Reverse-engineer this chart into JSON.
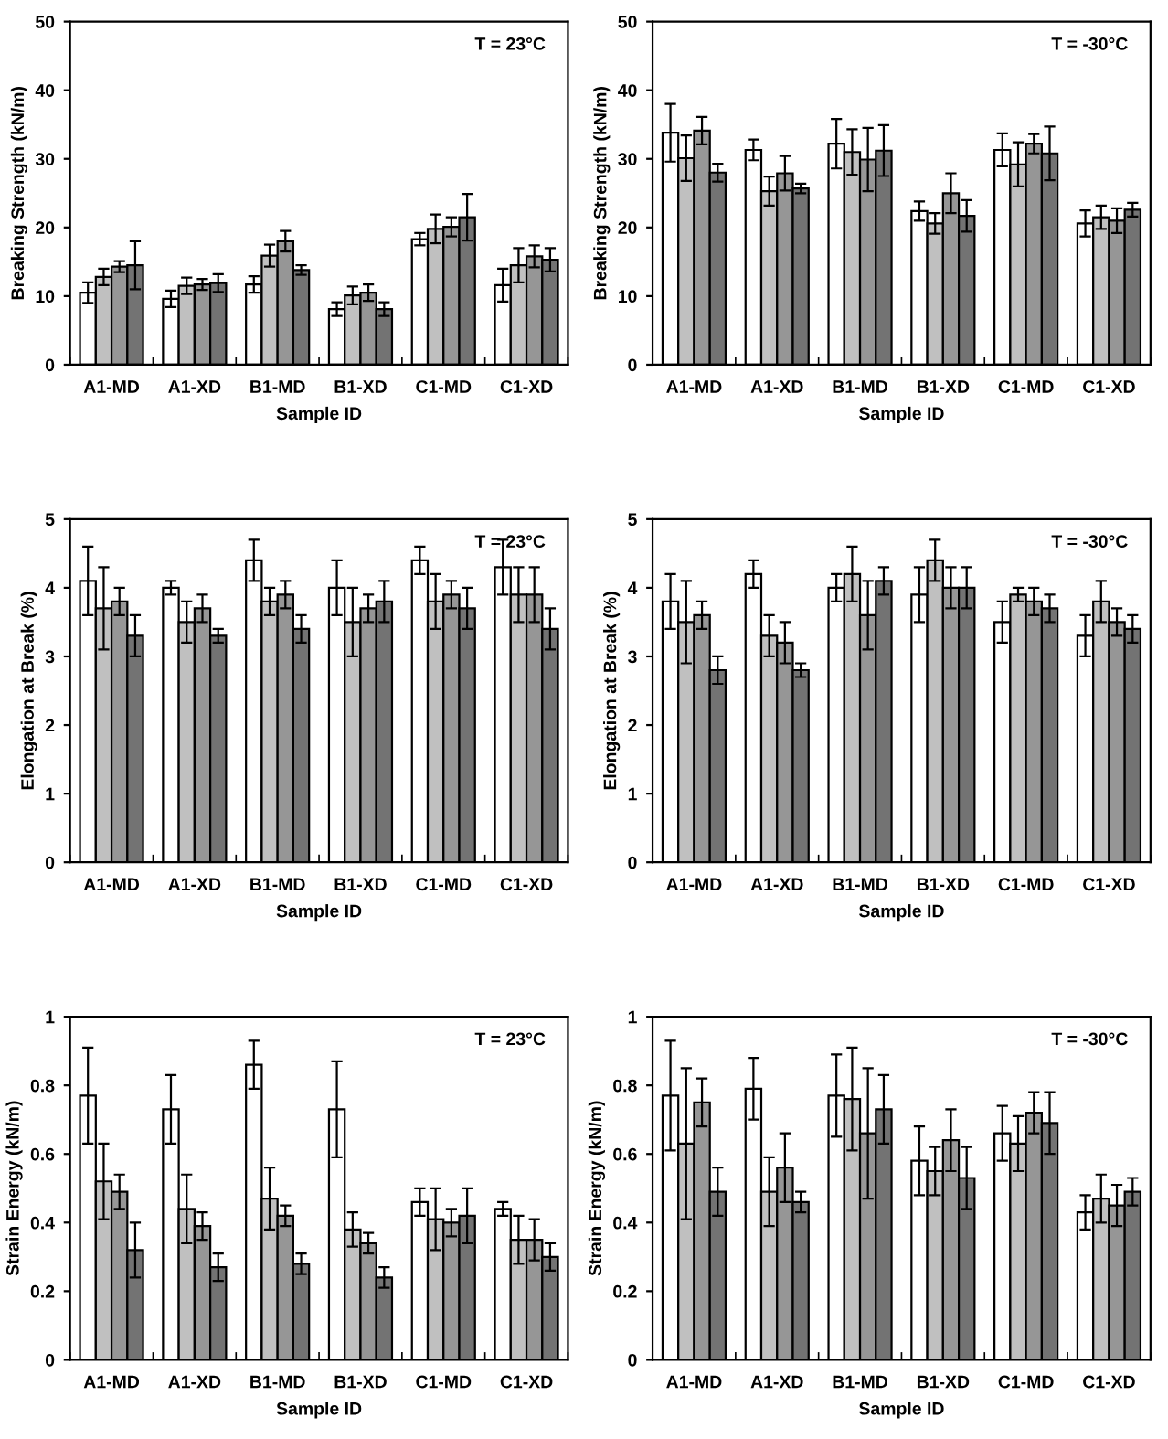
{
  "chart_data": [
    {
      "type": "bar",
      "categories": [
        "A1-MD",
        "A1-XD",
        "B1-MD",
        "B1-XD",
        "C1-MD",
        "C1-XD"
      ],
      "xlabel": "Sample ID",
      "ylabel": "Breaking Strength (kN/m)",
      "annotations": [
        "T = 23°C"
      ],
      "ylim": [
        0,
        50
      ],
      "yticks": [
        0,
        10,
        20,
        30,
        40,
        50
      ],
      "grid": false,
      "legend": false,
      "series": [
        {
          "color": "#ffffff",
          "values": [
            10.5,
            9.6,
            11.7,
            8.1,
            18.3,
            11.6
          ],
          "errors": [
            1.5,
            1.2,
            1.2,
            1.0,
            0.9,
            2.4
          ]
        },
        {
          "color": "#c0c0c0",
          "values": [
            12.8,
            11.5,
            15.9,
            10.1,
            19.8,
            14.5
          ],
          "errors": [
            1.2,
            1.2,
            1.6,
            1.3,
            2.1,
            2.5
          ]
        },
        {
          "color": "#969696",
          "values": [
            14.3,
            11.7,
            18.0,
            10.5,
            20.1,
            15.8
          ],
          "errors": [
            0.8,
            0.8,
            1.5,
            1.2,
            1.4,
            1.6
          ]
        },
        {
          "color": "#737373",
          "values": [
            14.5,
            11.9,
            13.8,
            8.1,
            21.5,
            15.3
          ],
          "errors": [
            3.5,
            1.3,
            0.7,
            1.0,
            3.4,
            1.7
          ]
        }
      ]
    },
    {
      "type": "bar",
      "categories": [
        "A1-MD",
        "A1-XD",
        "B1-MD",
        "B1-XD",
        "C1-MD",
        "C1-XD"
      ],
      "xlabel": "Sample ID",
      "ylabel": "Breaking Strength (kN/m)",
      "annotations": [
        "T = -30°C"
      ],
      "ylim": [
        0,
        50
      ],
      "yticks": [
        0,
        10,
        20,
        30,
        40,
        50
      ],
      "grid": false,
      "legend": false,
      "series": [
        {
          "color": "#ffffff",
          "values": [
            33.8,
            31.3,
            32.2,
            22.4,
            31.3,
            20.6
          ],
          "errors": [
            4.2,
            1.5,
            3.6,
            1.4,
            2.4,
            1.9
          ]
        },
        {
          "color": "#c0c0c0",
          "values": [
            30.1,
            25.3,
            31.0,
            20.6,
            29.2,
            21.5
          ],
          "errors": [
            3.3,
            2.1,
            3.3,
            1.5,
            3.2,
            1.7
          ]
        },
        {
          "color": "#969696",
          "values": [
            34.1,
            27.9,
            29.9,
            25.0,
            32.2,
            21.0
          ],
          "errors": [
            2.0,
            2.5,
            4.6,
            2.9,
            1.4,
            1.8
          ]
        },
        {
          "color": "#737373",
          "values": [
            28.0,
            25.7,
            31.2,
            21.7,
            30.8,
            22.6
          ],
          "errors": [
            1.3,
            0.7,
            3.7,
            2.3,
            3.9,
            1.0
          ]
        }
      ]
    },
    {
      "type": "bar",
      "categories": [
        "A1-MD",
        "A1-XD",
        "B1-MD",
        "B1-XD",
        "C1-MD",
        "C1-XD"
      ],
      "xlabel": "Sample ID",
      "ylabel": "Elongation at Break (%)",
      "annotations": [
        "T = 23°C"
      ],
      "ylim": [
        0,
        5
      ],
      "yticks": [
        0,
        1,
        2,
        3,
        4,
        5
      ],
      "grid": false,
      "legend": false,
      "series": [
        {
          "color": "#ffffff",
          "values": [
            4.1,
            4.0,
            4.4,
            4.0,
            4.4,
            4.3
          ],
          "errors": [
            0.5,
            0.1,
            0.3,
            0.4,
            0.2,
            0.4
          ]
        },
        {
          "color": "#c0c0c0",
          "values": [
            3.7,
            3.5,
            3.8,
            3.5,
            3.8,
            3.9
          ],
          "errors": [
            0.6,
            0.3,
            0.2,
            0.5,
            0.4,
            0.4
          ]
        },
        {
          "color": "#969696",
          "values": [
            3.8,
            3.7,
            3.9,
            3.7,
            3.9,
            3.9
          ],
          "errors": [
            0.2,
            0.2,
            0.2,
            0.2,
            0.2,
            0.4
          ]
        },
        {
          "color": "#737373",
          "values": [
            3.3,
            3.3,
            3.4,
            3.8,
            3.7,
            3.4
          ],
          "errors": [
            0.3,
            0.1,
            0.2,
            0.3,
            0.3,
            0.3
          ]
        }
      ]
    },
    {
      "type": "bar",
      "categories": [
        "A1-MD",
        "A1-XD",
        "B1-MD",
        "B1-XD",
        "C1-MD",
        "C1-XD"
      ],
      "xlabel": "Sample ID",
      "ylabel": "Elongation at Break (%)",
      "annotations": [
        "T = -30°C"
      ],
      "ylim": [
        0,
        5
      ],
      "yticks": [
        0,
        1,
        2,
        3,
        4,
        5
      ],
      "grid": false,
      "legend": false,
      "series": [
        {
          "color": "#ffffff",
          "values": [
            3.8,
            4.2,
            4.0,
            3.9,
            3.5,
            3.3
          ],
          "errors": [
            0.4,
            0.2,
            0.2,
            0.4,
            0.3,
            0.3
          ]
        },
        {
          "color": "#c0c0c0",
          "values": [
            3.5,
            3.3,
            4.2,
            4.4,
            3.9,
            3.8
          ],
          "errors": [
            0.6,
            0.3,
            0.4,
            0.3,
            0.1,
            0.3
          ]
        },
        {
          "color": "#969696",
          "values": [
            3.6,
            3.2,
            3.6,
            4.0,
            3.8,
            3.5
          ],
          "errors": [
            0.2,
            0.3,
            0.5,
            0.3,
            0.2,
            0.2
          ]
        },
        {
          "color": "#737373",
          "values": [
            2.8,
            2.8,
            4.1,
            4.0,
            3.7,
            3.4
          ],
          "errors": [
            0.2,
            0.1,
            0.2,
            0.3,
            0.2,
            0.2
          ]
        }
      ]
    },
    {
      "type": "bar",
      "categories": [
        "A1-MD",
        "A1-XD",
        "B1-MD",
        "B1-XD",
        "C1-MD",
        "C1-XD"
      ],
      "xlabel": "Sample ID",
      "ylabel": "Strain Energy (kN/m)",
      "annotations": [
        "T = 23°C"
      ],
      "ylim": [
        0,
        1
      ],
      "yticks": [
        0,
        0.2,
        0.4,
        0.6,
        0.8,
        1
      ],
      "grid": false,
      "legend": false,
      "series": [
        {
          "color": "#ffffff",
          "values": [
            0.77,
            0.73,
            0.86,
            0.73,
            0.46,
            0.44
          ],
          "errors": [
            0.14,
            0.1,
            0.07,
            0.14,
            0.04,
            0.02
          ]
        },
        {
          "color": "#c0c0c0",
          "values": [
            0.52,
            0.44,
            0.47,
            0.38,
            0.41,
            0.35
          ],
          "errors": [
            0.11,
            0.1,
            0.09,
            0.05,
            0.09,
            0.07
          ]
        },
        {
          "color": "#969696",
          "values": [
            0.49,
            0.39,
            0.42,
            0.34,
            0.4,
            0.35
          ],
          "errors": [
            0.05,
            0.04,
            0.03,
            0.03,
            0.04,
            0.06
          ]
        },
        {
          "color": "#737373",
          "values": [
            0.32,
            0.27,
            0.28,
            0.24,
            0.42,
            0.3
          ],
          "errors": [
            0.08,
            0.04,
            0.03,
            0.03,
            0.08,
            0.04
          ]
        }
      ]
    },
    {
      "type": "bar",
      "categories": [
        "A1-MD",
        "A1-XD",
        "B1-MD",
        "B1-XD",
        "C1-MD",
        "C1-XD"
      ],
      "xlabel": "Sample ID",
      "ylabel": "Strain Energy (kN/m)",
      "annotations": [
        "T = -30°C"
      ],
      "ylim": [
        0,
        1
      ],
      "yticks": [
        0,
        0.2,
        0.4,
        0.6,
        0.8,
        1
      ],
      "grid": false,
      "legend": false,
      "series": [
        {
          "color": "#ffffff",
          "values": [
            0.77,
            0.79,
            0.77,
            0.58,
            0.66,
            0.43
          ],
          "errors": [
            0.16,
            0.09,
            0.12,
            0.1,
            0.08,
            0.05
          ]
        },
        {
          "color": "#c0c0c0",
          "values": [
            0.63,
            0.49,
            0.76,
            0.55,
            0.63,
            0.47
          ],
          "errors": [
            0.22,
            0.1,
            0.15,
            0.07,
            0.08,
            0.07
          ]
        },
        {
          "color": "#969696",
          "values": [
            0.75,
            0.56,
            0.66,
            0.64,
            0.72,
            0.45
          ],
          "errors": [
            0.07,
            0.1,
            0.19,
            0.09,
            0.06,
            0.06
          ]
        },
        {
          "color": "#737373",
          "values": [
            0.49,
            0.46,
            0.73,
            0.53,
            0.69,
            0.49
          ],
          "errors": [
            0.07,
            0.03,
            0.1,
            0.09,
            0.09,
            0.04
          ]
        }
      ]
    }
  ]
}
